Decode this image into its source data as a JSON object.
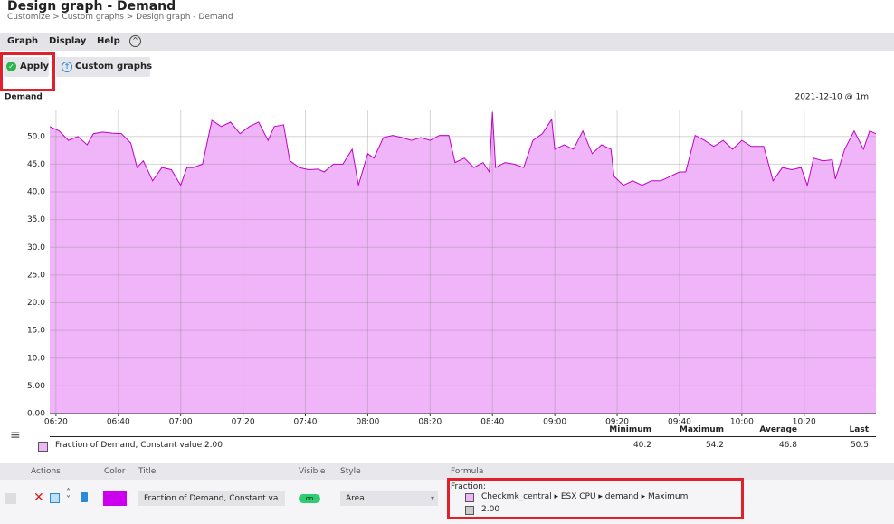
{
  "header": {
    "title": "Design graph - Demand",
    "breadcrumb": "Customize > Custom graphs > Design graph - Demand"
  },
  "menu": [
    "Graph",
    "Display",
    "Help"
  ],
  "buttons": [
    "Apply",
    "Custom graphs"
  ],
  "chart_data": {
    "type": "area",
    "title": "Demand",
    "subtitle": "2021-12-10 @ 1m",
    "x": [
      "06:18",
      "06:21",
      "06:24",
      "06:27",
      "06:30",
      "06:32",
      "06:35",
      "06:38",
      "06:41",
      "06:44",
      "06:46",
      "06:48",
      "06:51",
      "06:54",
      "06:57",
      "07:00",
      "07:02",
      "07:04",
      "07:07",
      "07:10",
      "07:13",
      "07:16",
      "07:19",
      "07:22",
      "07:25",
      "07:28",
      "07:30",
      "07:33",
      "07:35",
      "07:38",
      "07:41",
      "07:44",
      "07:46",
      "07:49",
      "07:52",
      "07:55",
      "07:57",
      "08:00",
      "08:02",
      "08:05",
      "08:08",
      "08:11",
      "08:14",
      "08:17",
      "08:20",
      "08:23",
      "08:26",
      "08:28",
      "08:31",
      "08:34",
      "08:37",
      "08:39",
      "08:40",
      "08:41",
      "08:44",
      "08:47",
      "08:50",
      "08:53",
      "08:56",
      "08:59",
      "09:00",
      "09:03",
      "09:06",
      "09:09",
      "09:12",
      "09:15",
      "09:18",
      "09:19",
      "09:22",
      "09:25",
      "09:28",
      "09:31",
      "09:34",
      "09:37",
      "09:40",
      "09:42",
      "09:45",
      "09:48",
      "09:51",
      "09:54",
      "09:57",
      "10:00",
      "10:03",
      "10:07",
      "10:10",
      "10:13",
      "10:16",
      "10:19",
      "10:21",
      "10:23",
      "10:26",
      "10:29",
      "10:30",
      "10:33",
      "10:36",
      "10:39",
      "10:41",
      "10:43"
    ],
    "values": [
      51.8,
      51,
      49.3,
      50,
      48.5,
      50.5,
      50.8,
      50.6,
      50.5,
      48.8,
      44.4,
      45.6,
      42,
      44.4,
      44,
      41.2,
      44.4,
      44.4,
      45,
      52.9,
      51.8,
      52.6,
      50.5,
      51.8,
      52.6,
      49.3,
      51.8,
      52.1,
      45.6,
      44.4,
      44,
      44.1,
      43.6,
      45,
      45,
      47.7,
      41.2,
      46.9,
      46.1,
      49.8,
      50.2,
      49.8,
      49.3,
      49.8,
      49.3,
      50.2,
      50.2,
      45.3,
      46.1,
      44.4,
      45.3,
      43.6,
      54.4,
      44.4,
      45.3,
      45,
      44.4,
      49.3,
      50.5,
      53.1,
      47.7,
      48.5,
      47.7,
      51,
      46.9,
      48.5,
      47.7,
      42.8,
      41.2,
      42,
      41.2,
      42,
      42,
      42.8,
      43.6,
      43.6,
      50.2,
      49.3,
      48.2,
      49.3,
      47.7,
      49.3,
      48.2,
      48.2,
      42,
      44.4,
      44,
      44.4,
      41.2,
      46.1,
      45.6,
      45.8,
      42.3,
      47.7,
      51,
      47.7,
      51,
      50.5
    ],
    "color": "#c000c8",
    "fill": "#f0b4f8",
    "xlim": [
      "06:18",
      "10:43"
    ],
    "xticks": [
      "06:20",
      "06:40",
      "07:00",
      "07:20",
      "07:40",
      "08:00",
      "08:20",
      "08:40",
      "09:00",
      "09:20",
      "09:40",
      "10:00",
      "10:20"
    ],
    "ylim": [
      0,
      54.7
    ],
    "yticks": [
      {
        "value": 0,
        "label": "0.00"
      },
      {
        "value": 5,
        "label": "5.00"
      },
      {
        "value": 10,
        "label": "10.0"
      },
      {
        "value": 15,
        "label": "15.0"
      },
      {
        "value": 20,
        "label": "20.0"
      },
      {
        "value": 25,
        "label": "25.0"
      },
      {
        "value": 30,
        "label": "30.0"
      },
      {
        "value": 35,
        "label": "35.0"
      },
      {
        "value": 40,
        "label": "40.0"
      },
      {
        "value": 45,
        "label": "45.0"
      },
      {
        "value": 50,
        "label": "50.0"
      }
    ],
    "grid": true
  },
  "legend": {
    "columns": [
      "Minimum",
      "Maximum",
      "Average",
      "Last"
    ],
    "rows": [
      {
        "label": "Fraction of Demand, Constant value 2.00",
        "values": [
          "40.2",
          "54.2",
          "46.8",
          "50.5"
        ]
      }
    ]
  },
  "editor": {
    "columns": [
      "Actions",
      "Color",
      "Title",
      "Visible",
      "Style",
      "Formula"
    ],
    "rows": [
      {
        "color": "#cc00ee",
        "title": "Fraction of Demand, Constant va",
        "visible": "on",
        "style": "Area",
        "formula": {
          "label": "Fraction:",
          "operands": [
            "Checkmk_central ▸ ESX CPU ▸ demand ▸ Maximum",
            "2.00"
          ]
        }
      }
    ]
  }
}
